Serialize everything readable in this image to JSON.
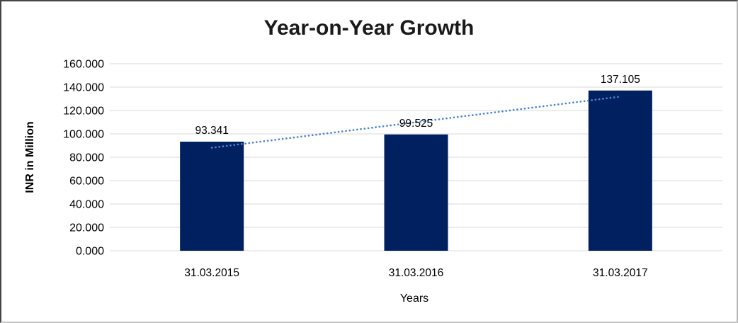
{
  "chart": {
    "title": "Year-on-Year Growth",
    "y_axis_title": "INR in Million",
    "x_axis_title": "Years"
  },
  "chart_data": {
    "type": "bar",
    "title": "Year-on-Year Growth",
    "categories": [
      "31.03.2015",
      "31.03.2016",
      "31.03.2017"
    ],
    "values": [
      93.341,
      99.525,
      137.105
    ],
    "data_labels": [
      "93.341",
      "99.525",
      "137.105"
    ],
    "xlabel": "Years",
    "ylabel": "INR in Million",
    "ylim": [
      0,
      160
    ],
    "ytick_step": 20,
    "ytick_labels": [
      "0.000",
      "20.000",
      "40.000",
      "60.000",
      "80.000",
      "100.000",
      "120.000",
      "140.000",
      "160.000"
    ],
    "grid": true,
    "legend": "none",
    "trendline": {
      "type": "linear",
      "style": "dotted"
    },
    "colors": {
      "bar": "#002060",
      "trendline": "#4a86d0",
      "gridline": "#d9d9d9",
      "axis_line": "#d9d9d9",
      "text": "#000000",
      "title": "#1a1a1a",
      "background": "#ffffff"
    }
  }
}
